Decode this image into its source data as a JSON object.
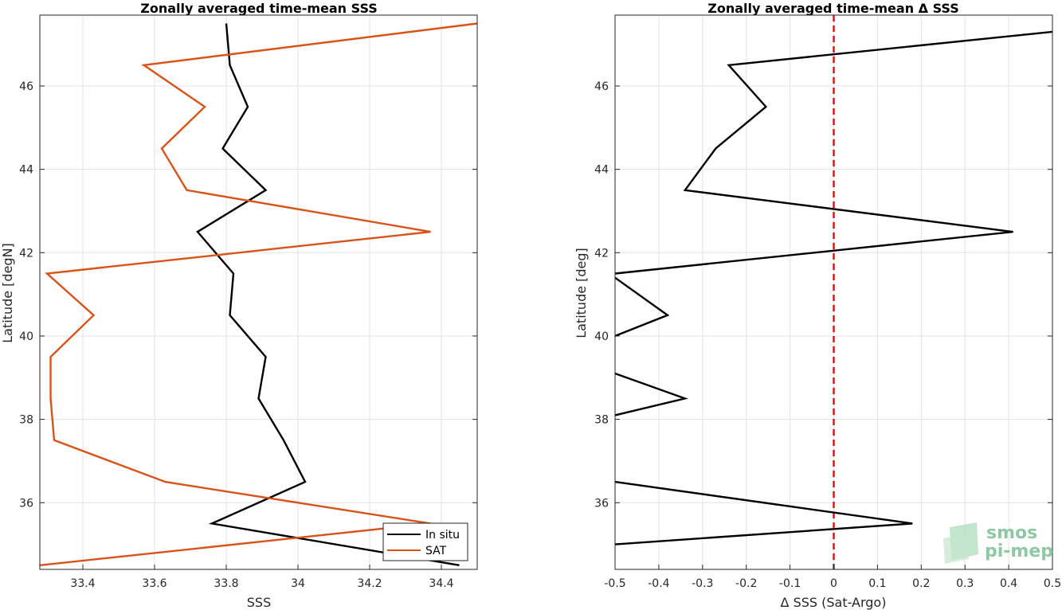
{
  "chart_data": [
    {
      "type": "line",
      "title": "Zonally averaged time-mean SSS",
      "xlabel": "SSS",
      "ylabel": "Latitude [degN]",
      "xlim": [
        33.28,
        34.5
      ],
      "ylim": [
        34.4,
        47.7
      ],
      "xticks": [
        33.4,
        33.6,
        33.8,
        34,
        34.2,
        34.4
      ],
      "yticks": [
        36,
        38,
        40,
        42,
        44,
        46
      ],
      "grid": true,
      "legend": "bottom-right",
      "series": [
        {
          "name": "In situ",
          "color": "#000000",
          "x": [
            34.45,
            33.76,
            34.02,
            33.96,
            33.89,
            33.91,
            33.81,
            33.82,
            33.72,
            33.91,
            33.79,
            33.86,
            33.81,
            33.8
          ],
          "y": [
            34.5,
            35.5,
            36.5,
            37.5,
            38.5,
            39.5,
            40.5,
            41.5,
            42.5,
            43.5,
            44.5,
            45.5,
            46.5,
            47.5
          ]
        },
        {
          "name": "SAT",
          "color": "#d95319",
          "x": [
            33.28,
            34.37,
            33.63,
            33.32,
            33.31,
            33.31,
            33.43,
            33.3,
            34.37,
            33.69,
            33.62,
            33.74,
            33.57,
            34.5
          ],
          "y": [
            34.5,
            35.5,
            36.5,
            37.5,
            38.5,
            39.5,
            40.5,
            41.5,
            42.5,
            43.5,
            44.5,
            45.5,
            46.5,
            47.5
          ]
        }
      ]
    },
    {
      "type": "line",
      "title": "Zonally averaged time-mean Δ SSS",
      "xlabel": "Δ SSS (Sat-Argo)",
      "ylabel": "Latitude [deg]",
      "xlim": [
        -0.5,
        0.5
      ],
      "ylim": [
        34.4,
        47.7
      ],
      "xticks": [
        -0.5,
        -0.4,
        -0.3,
        -0.2,
        -0.1,
        0,
        0.1,
        0.2,
        0.3,
        0.4,
        0.5
      ],
      "yticks": [
        36,
        38,
        40,
        42,
        44,
        46
      ],
      "grid": true,
      "reference_line": {
        "x": 0,
        "color": "#ff0000",
        "style": "dashed"
      },
      "series": [
        {
          "color": "#000000",
          "segments": [
            {
              "x": [
                -0.5,
                0.18,
                -0.5
              ],
              "y": [
                35.0,
                35.5,
                36.5
              ]
            },
            {
              "x": [
                -0.5,
                -0.34,
                -0.5
              ],
              "y": [
                38.1,
                38.5,
                39.1
              ]
            },
            {
              "x": [
                -0.5,
                -0.38,
                -0.5
              ],
              "y": [
                40.0,
                40.5,
                41.4
              ]
            },
            {
              "x": [
                -0.5,
                0.41,
                -0.34,
                -0.27,
                -0.155,
                -0.24,
                0.5
              ],
              "y": [
                41.5,
                42.5,
                43.5,
                44.5,
                45.5,
                46.5,
                47.3
              ]
            }
          ]
        }
      ]
    }
  ],
  "logo": {
    "line1": "smos",
    "line2": "pi-mep",
    "color": "#8fc9a3"
  }
}
